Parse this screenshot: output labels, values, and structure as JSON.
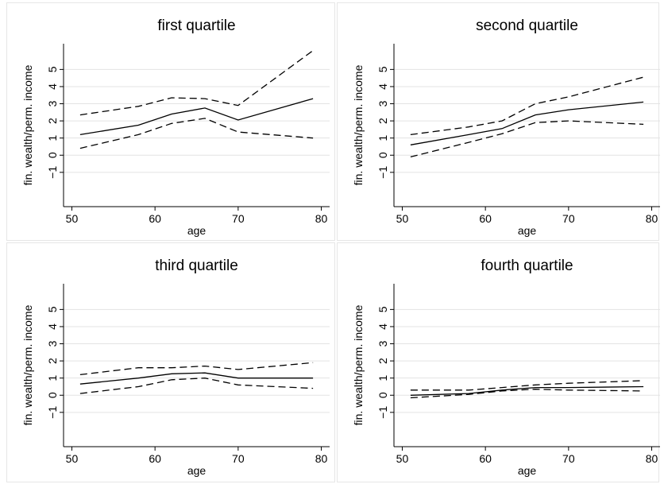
{
  "colors": {
    "background": "#ffffff",
    "panel_border": "#e6e6e6",
    "grid": "#e3e3e3",
    "line": "#000000"
  },
  "chart_data": [
    {
      "type": "line",
      "title": "first quartile",
      "xlabel": "age",
      "ylabel": "fin. wealth/perm. income",
      "xlim": [
        49,
        81
      ],
      "xticks": [
        50,
        60,
        70,
        80
      ],
      "ylim": [
        -3,
        6.5
      ],
      "yticks": [
        -1,
        0,
        1,
        2,
        3,
        4,
        5
      ],
      "ytick_labels": [
        "−1",
        "0",
        "1",
        "2",
        "3",
        "4",
        "5"
      ],
      "grid": true,
      "x": [
        51,
        58,
        62,
        66,
        70,
        79
      ],
      "series": [
        {
          "style": "solid",
          "values": [
            1.2,
            1.75,
            2.4,
            2.75,
            2.05,
            3.3
          ]
        },
        {
          "style": "dashed",
          "values": [
            2.35,
            2.85,
            3.35,
            3.3,
            2.9,
            6.1
          ]
        },
        {
          "style": "dashed",
          "values": [
            0.4,
            1.2,
            1.85,
            2.15,
            1.35,
            1.0
          ]
        }
      ]
    },
    {
      "type": "line",
      "title": "second quartile",
      "xlabel": "age",
      "ylabel": "fin. wealth/perm. income",
      "xlim": [
        49,
        81
      ],
      "xticks": [
        50,
        60,
        70,
        80
      ],
      "ylim": [
        -3,
        6.5
      ],
      "yticks": [
        -1,
        0,
        1,
        2,
        3,
        4,
        5
      ],
      "ytick_labels": [
        "−1",
        "0",
        "1",
        "2",
        "3",
        "4",
        "5"
      ],
      "grid": true,
      "x": [
        51,
        58,
        62,
        66,
        70,
        79
      ],
      "series": [
        {
          "style": "solid",
          "values": [
            0.6,
            1.2,
            1.55,
            2.35,
            2.65,
            3.1
          ]
        },
        {
          "style": "dashed",
          "values": [
            1.2,
            1.65,
            2.0,
            3.0,
            3.4,
            4.55
          ]
        },
        {
          "style": "dashed",
          "values": [
            -0.1,
            0.75,
            1.25,
            1.9,
            2.0,
            1.8
          ]
        }
      ]
    },
    {
      "type": "line",
      "title": "third quartile",
      "xlabel": "age",
      "ylabel": "fin. wealth/perm. income",
      "xlim": [
        49,
        81
      ],
      "xticks": [
        50,
        60,
        70,
        80
      ],
      "ylim": [
        -3,
        6.5
      ],
      "yticks": [
        -1,
        0,
        1,
        2,
        3,
        4,
        5
      ],
      "ytick_labels": [
        "−1",
        "0",
        "1",
        "2",
        "3",
        "4",
        "5"
      ],
      "grid": true,
      "x": [
        51,
        58,
        62,
        66,
        70,
        79
      ],
      "series": [
        {
          "style": "solid",
          "values": [
            0.65,
            1.0,
            1.25,
            1.3,
            1.0,
            1.0
          ]
        },
        {
          "style": "dashed",
          "values": [
            1.2,
            1.6,
            1.6,
            1.7,
            1.5,
            1.9
          ]
        },
        {
          "style": "dashed",
          "values": [
            0.1,
            0.5,
            0.9,
            1.0,
            0.6,
            0.4
          ]
        }
      ]
    },
    {
      "type": "line",
      "title": "fourth quartile",
      "xlabel": "age",
      "ylabel": "fin. wealth/perm. income",
      "xlim": [
        49,
        81
      ],
      "xticks": [
        50,
        60,
        70,
        80
      ],
      "ylim": [
        -3,
        6.5
      ],
      "yticks": [
        -1,
        0,
        1,
        2,
        3,
        4,
        5
      ],
      "ytick_labels": [
        "−1",
        "0",
        "1",
        "2",
        "3",
        "4",
        "5"
      ],
      "grid": true,
      "x": [
        51,
        58,
        62,
        66,
        70,
        79
      ],
      "series": [
        {
          "style": "solid",
          "values": [
            0.0,
            0.1,
            0.3,
            0.45,
            0.45,
            0.5
          ]
        },
        {
          "style": "dashed",
          "values": [
            0.3,
            0.3,
            0.45,
            0.6,
            0.7,
            0.85
          ]
        },
        {
          "style": "dashed",
          "values": [
            -0.15,
            0.05,
            0.25,
            0.35,
            0.3,
            0.25
          ]
        }
      ]
    }
  ]
}
